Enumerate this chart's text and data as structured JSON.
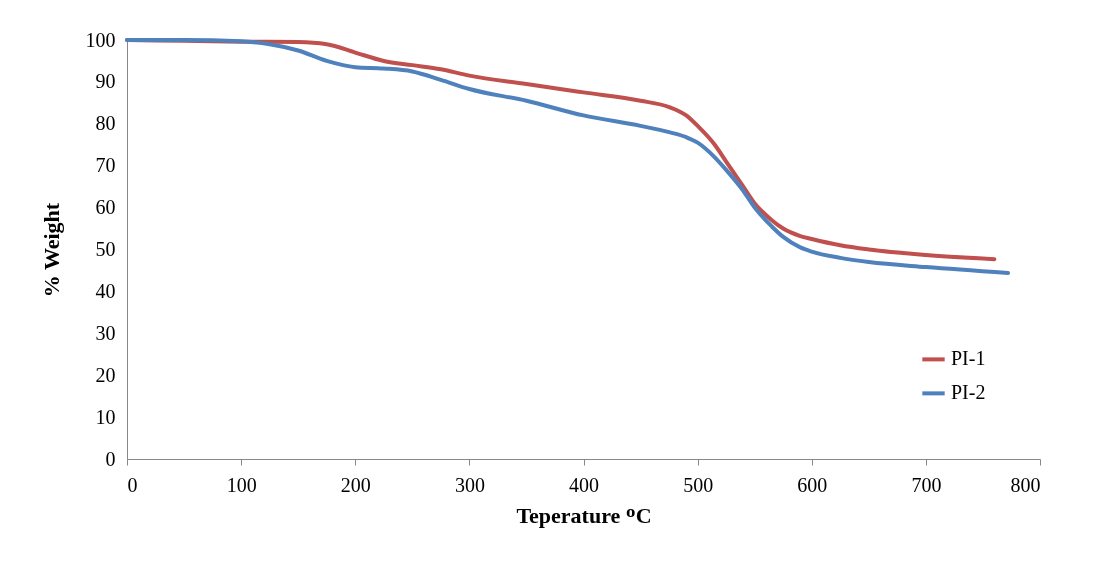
{
  "chart_data": {
    "type": "line",
    "xlabel": "Teperature ᴼC",
    "ylabel": "% Weight",
    "xlim": [
      0,
      800
    ],
    "xticks": [
      0,
      100,
      200,
      300,
      400,
      500,
      600,
      700,
      800
    ],
    "ylim": [
      0,
      100
    ],
    "yticks": [
      0,
      10,
      20,
      30,
      40,
      50,
      60,
      70,
      80,
      90,
      100
    ],
    "grid": false,
    "legend": "right",
    "marker": "none",
    "line_style": "solid",
    "series": [
      {
        "name": "PI-1",
        "color": "#c0504d",
        "x": [
          0,
          50,
          100,
          150,
          175,
          200,
          225,
          250,
          275,
          300,
          350,
          400,
          450,
          475,
          490,
          500,
          515,
          525,
          540,
          550,
          565,
          575,
          590,
          600,
          625,
          650,
          700,
          760
        ],
        "values": [
          100,
          99.8,
          99.6,
          99.5,
          99,
          97,
          95,
          94,
          93,
          91.5,
          89.5,
          87.5,
          85.5,
          84,
          82,
          79.5,
          75,
          71,
          65,
          61,
          57,
          55,
          53.2,
          52.5,
          51,
          50,
          48.7,
          47.7
        ]
      },
      {
        "name": "PI-2",
        "color": "#4f81bd",
        "x": [
          0,
          50,
          100,
          125,
          150,
          175,
          200,
          225,
          250,
          275,
          300,
          350,
          400,
          450,
          475,
          490,
          500,
          515,
          525,
          540,
          550,
          565,
          575,
          590,
          600,
          625,
          650,
          700,
          772
        ],
        "values": [
          100,
          100,
          99.7,
          99,
          97.5,
          95,
          93.5,
          93.2,
          92.5,
          90.5,
          88.3,
          85.5,
          82,
          79.5,
          78,
          76.8,
          75.5,
          72,
          69,
          64,
          60,
          55.5,
          53,
          50.5,
          49.5,
          48,
          47,
          45.8,
          44.4
        ]
      }
    ]
  }
}
